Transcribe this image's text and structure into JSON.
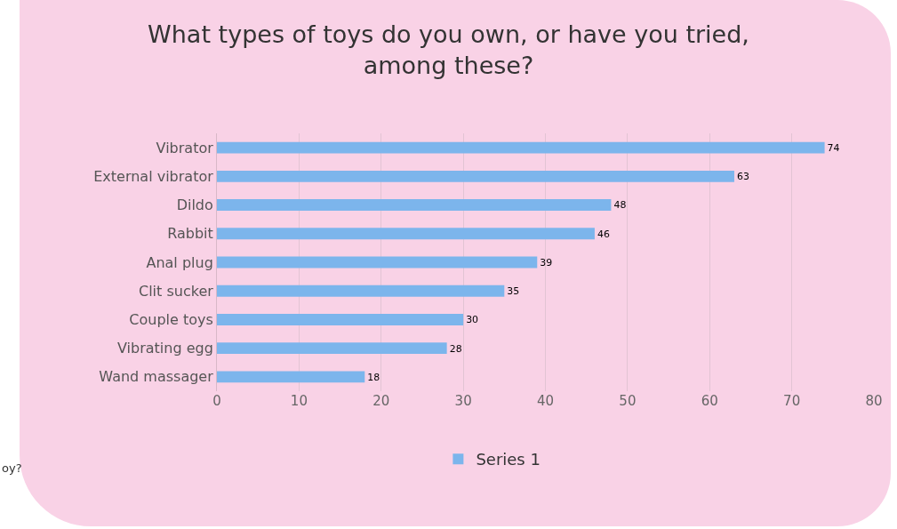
{
  "chart_data": {
    "type": "bar",
    "orientation": "horizontal",
    "title": "What types of toys do you own, or have you tried,\namong these?",
    "categories": [
      "Vibrator",
      "External vibrator",
      "Dildo",
      "Rabbit",
      "Anal plug",
      "Clit sucker",
      "Couple toys",
      "Vibrating egg",
      "Wand massager"
    ],
    "series": [
      {
        "name": "Series 1",
        "color": "#7cb5ec",
        "values": [
          74,
          63,
          48,
          46,
          39,
          35,
          30,
          28,
          18
        ]
      }
    ],
    "xlim": [
      0,
      80
    ],
    "xticks": [
      0,
      10,
      20,
      30,
      40,
      50,
      60,
      70,
      80
    ],
    "grid": "x",
    "legend": "bottom",
    "data_labels": true,
    "annotations": [
      "oy?"
    ]
  }
}
